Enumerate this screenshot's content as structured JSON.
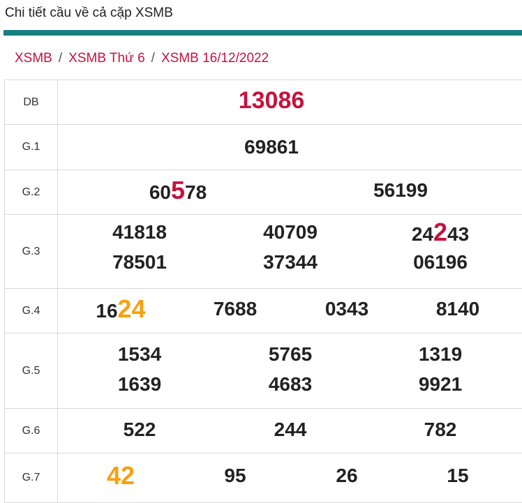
{
  "page_title": "Chi tiết cầu về cả cặp XSMB",
  "breadcrumb": [
    "XSMB",
    "XSMB Thứ 6",
    "XSMB 16/12/2022"
  ],
  "colors": {
    "accent": "#177e84",
    "highlight_red": "#c5123e",
    "highlight_orange": "#f5a10f"
  },
  "prizes": [
    {
      "label": "DB",
      "numbers": [
        {
          "parts": [
            {
              "t": "13086",
              "c": "db"
            }
          ]
        }
      ]
    },
    {
      "label": "G.1",
      "numbers": [
        {
          "parts": [
            {
              "t": "69861"
            }
          ]
        }
      ]
    },
    {
      "label": "G.2",
      "numbers": [
        {
          "parts": [
            {
              "t": "60"
            },
            {
              "t": "5",
              "c": "red"
            },
            {
              "t": "78"
            }
          ]
        },
        {
          "parts": [
            {
              "t": "56199"
            }
          ]
        }
      ]
    },
    {
      "label": "G.3",
      "numbers": [
        {
          "parts": [
            {
              "t": "41818"
            }
          ]
        },
        {
          "parts": [
            {
              "t": "40709"
            }
          ]
        },
        {
          "parts": [
            {
              "t": "24"
            },
            {
              "t": "2",
              "c": "red"
            },
            {
              "t": "43"
            }
          ]
        },
        {
          "parts": [
            {
              "t": "78501"
            }
          ]
        },
        {
          "parts": [
            {
              "t": "37344"
            }
          ]
        },
        {
          "parts": [
            {
              "t": "06196"
            }
          ]
        }
      ]
    },
    {
      "label": "G.4",
      "numbers": [
        {
          "parts": [
            {
              "t": "16"
            },
            {
              "t": "24",
              "c": "orange"
            }
          ]
        },
        {
          "parts": [
            {
              "t": "7688"
            }
          ]
        },
        {
          "parts": [
            {
              "t": "0343"
            }
          ]
        },
        {
          "parts": [
            {
              "t": "8140"
            }
          ]
        }
      ]
    },
    {
      "label": "G.5",
      "numbers": [
        {
          "parts": [
            {
              "t": "1534"
            }
          ]
        },
        {
          "parts": [
            {
              "t": "5765"
            }
          ]
        },
        {
          "parts": [
            {
              "t": "1319"
            }
          ]
        },
        {
          "parts": [
            {
              "t": "1639"
            }
          ]
        },
        {
          "parts": [
            {
              "t": "4683"
            }
          ]
        },
        {
          "parts": [
            {
              "t": "9921"
            }
          ]
        }
      ]
    },
    {
      "label": "G.6",
      "numbers": [
        {
          "parts": [
            {
              "t": "522"
            }
          ]
        },
        {
          "parts": [
            {
              "t": "244"
            }
          ]
        },
        {
          "parts": [
            {
              "t": "782"
            }
          ]
        }
      ]
    },
    {
      "label": "G.7",
      "numbers": [
        {
          "parts": [
            {
              "t": "42",
              "c": "orange"
            }
          ]
        },
        {
          "parts": [
            {
              "t": "95"
            }
          ]
        },
        {
          "parts": [
            {
              "t": "26"
            }
          ]
        },
        {
          "parts": [
            {
              "t": "15"
            }
          ]
        }
      ]
    }
  ]
}
